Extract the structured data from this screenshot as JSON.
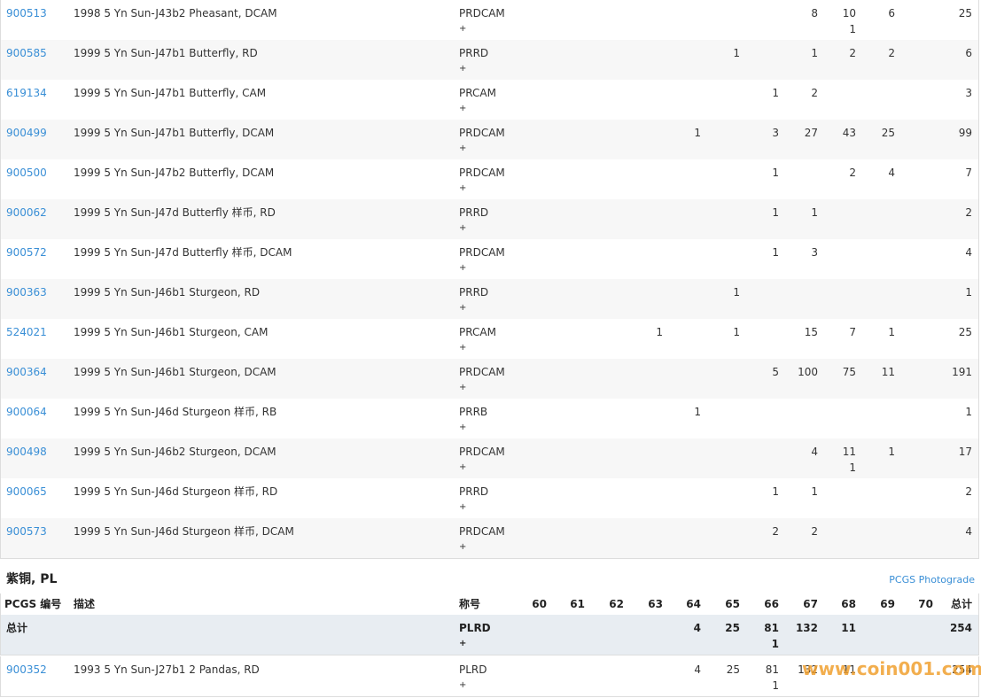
{
  "top_table": {
    "rows": [
      {
        "pcgs": "900513",
        "description": "1998 5 Yn Sun-J43b2 Pheasant, DCAM",
        "designation": "PRDCAM",
        "plus_sign": "+",
        "grades": [
          null,
          null,
          null,
          null,
          null,
          null,
          null,
          8,
          {
            "count": 10,
            "plus": 1
          },
          6,
          null
        ],
        "total": 25
      },
      {
        "pcgs": "900585",
        "description": "1999 5 Yn Sun-J47b1 Butterfly, RD",
        "designation": "PRRD",
        "plus_sign": "+",
        "grades": [
          null,
          null,
          null,
          null,
          null,
          1,
          null,
          1,
          2,
          2,
          null
        ],
        "total": 6
      },
      {
        "pcgs": "619134",
        "description": "1999 5 Yn Sun-J47b1 Butterfly, CAM",
        "designation": "PRCAM",
        "plus_sign": "+",
        "grades": [
          null,
          null,
          null,
          null,
          null,
          null,
          1,
          2,
          null,
          null,
          null
        ],
        "total": 3
      },
      {
        "pcgs": "900499",
        "description": "1999 5 Yn Sun-J47b1 Butterfly, DCAM",
        "designation": "PRDCAM",
        "plus_sign": "+",
        "grades": [
          null,
          null,
          null,
          null,
          1,
          null,
          3,
          27,
          43,
          25,
          null
        ],
        "total": 99
      },
      {
        "pcgs": "900500",
        "description": "1999 5 Yn Sun-J47b2 Butterfly, DCAM",
        "designation": "PRDCAM",
        "plus_sign": "+",
        "grades": [
          null,
          null,
          null,
          null,
          null,
          null,
          1,
          null,
          2,
          4,
          null
        ],
        "total": 7
      },
      {
        "pcgs": "900062",
        "description": "1999 5 Yn Sun-J47d Butterfly 样币, RD",
        "designation": "PRRD",
        "plus_sign": "+",
        "grades": [
          null,
          null,
          null,
          null,
          null,
          null,
          1,
          1,
          null,
          null,
          null
        ],
        "total": 2
      },
      {
        "pcgs": "900572",
        "description": "1999 5 Yn Sun-J47d Butterfly 样币, DCAM",
        "designation": "PRDCAM",
        "plus_sign": "+",
        "grades": [
          null,
          null,
          null,
          null,
          null,
          null,
          1,
          3,
          null,
          null,
          null
        ],
        "total": 4
      },
      {
        "pcgs": "900363",
        "description": "1999 5 Yn Sun-J46b1 Sturgeon, RD",
        "designation": "PRRD",
        "plus_sign": "+",
        "grades": [
          null,
          null,
          null,
          null,
          null,
          1,
          null,
          null,
          null,
          null,
          null
        ],
        "total": 1
      },
      {
        "pcgs": "524021",
        "description": "1999 5 Yn Sun-J46b1 Sturgeon, CAM",
        "designation": "PRCAM",
        "plus_sign": "+",
        "grades": [
          null,
          null,
          null,
          1,
          null,
          1,
          null,
          15,
          7,
          1,
          null
        ],
        "total": 25
      },
      {
        "pcgs": "900364",
        "description": "1999 5 Yn Sun-J46b1 Sturgeon, DCAM",
        "designation": "PRDCAM",
        "plus_sign": "+",
        "grades": [
          null,
          null,
          null,
          null,
          null,
          null,
          5,
          100,
          75,
          11,
          null
        ],
        "total": 191
      },
      {
        "pcgs": "900064",
        "description": "1999 5 Yn Sun-J46d Sturgeon 样币, RB",
        "designation": "PRRB",
        "plus_sign": "+",
        "grades": [
          null,
          null,
          null,
          null,
          1,
          null,
          null,
          null,
          null,
          null,
          null
        ],
        "total": 1
      },
      {
        "pcgs": "900498",
        "description": "1999 5 Yn Sun-J46b2 Sturgeon, DCAM",
        "designation": "PRDCAM",
        "plus_sign": "+",
        "grades": [
          null,
          null,
          null,
          null,
          null,
          null,
          null,
          4,
          {
            "count": 11,
            "plus": 1
          },
          1,
          null
        ],
        "total": 17
      },
      {
        "pcgs": "900065",
        "description": "1999 5 Yn Sun-J46d Sturgeon 样币, RD",
        "designation": "PRRD",
        "plus_sign": "+",
        "grades": [
          null,
          null,
          null,
          null,
          null,
          null,
          1,
          1,
          null,
          null,
          null
        ],
        "total": 2
      },
      {
        "pcgs": "900573",
        "description": "1999 5 Yn Sun-J46d Sturgeon 样币, DCAM",
        "designation": "PRDCAM",
        "plus_sign": "+",
        "grades": [
          null,
          null,
          null,
          null,
          null,
          null,
          2,
          2,
          null,
          null,
          null
        ],
        "total": 4
      }
    ]
  },
  "section": {
    "title": "紫铜, PL",
    "link": "PCGS Photograde",
    "header": [
      "PCGS 编号",
      "描述",
      "称号",
      "60",
      "61",
      "62",
      "63",
      "64",
      "65",
      "66",
      "67",
      "68",
      "69",
      "70",
      "总计"
    ],
    "total_row": {
      "label": "总计",
      "designation": "PLRD",
      "plus_sign": "+",
      "grades": [
        null,
        null,
        null,
        null,
        4,
        25,
        {
          "count": 81,
          "plus": 1
        },
        132,
        11,
        null,
        null
      ],
      "total": 254
    },
    "rows": [
      {
        "pcgs": "900352",
        "description": "1993 5 Yn Sun-J27b1 2 Pandas, RD",
        "designation": "PLRD",
        "plus_sign": "+",
        "grades": [
          null,
          null,
          null,
          null,
          4,
          25,
          {
            "count": 81,
            "plus": 1
          },
          132,
          11,
          null,
          null
        ],
        "total": 254
      }
    ]
  },
  "watermark": "www.coin001.com"
}
